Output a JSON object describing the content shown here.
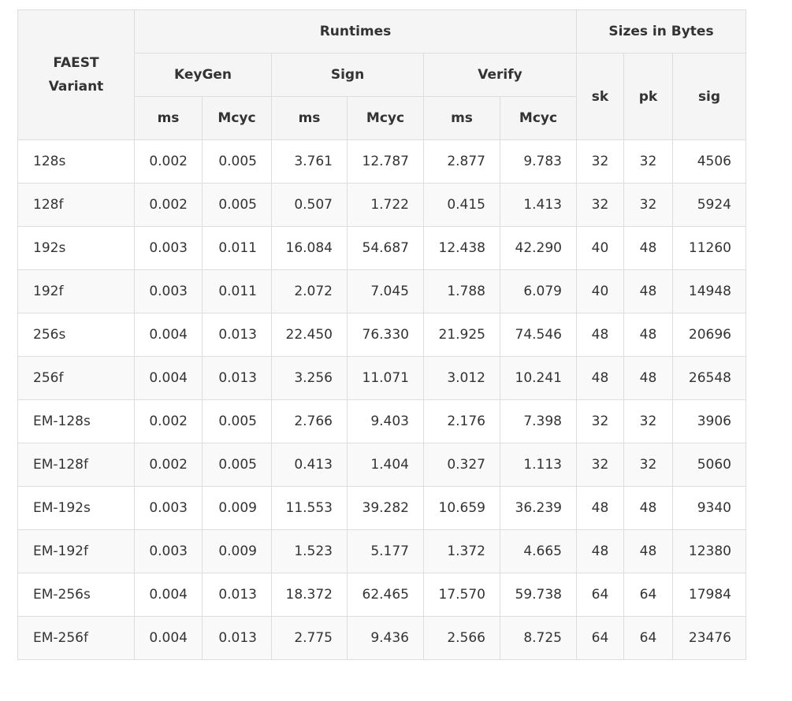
{
  "header": {
    "variant_line1": "FAEST",
    "variant_line2": "Variant",
    "runtimes": "Runtimes",
    "sizes": "Sizes in Bytes",
    "keygen": "KeyGen",
    "sign": "Sign",
    "verify": "Verify",
    "ms": "ms",
    "mcyc": "Mcyc",
    "sk": "sk",
    "pk": "pk",
    "sig": "sig"
  },
  "rows": [
    [
      "128s",
      "0.002",
      "0.005",
      "3.761",
      "12.787",
      "2.877",
      "9.783",
      "32",
      "32",
      "4506"
    ],
    [
      "128f",
      "0.002",
      "0.005",
      "0.507",
      "1.722",
      "0.415",
      "1.413",
      "32",
      "32",
      "5924"
    ],
    [
      "192s",
      "0.003",
      "0.011",
      "16.084",
      "54.687",
      "12.438",
      "42.290",
      "40",
      "48",
      "11260"
    ],
    [
      "192f",
      "0.003",
      "0.011",
      "2.072",
      "7.045",
      "1.788",
      "6.079",
      "40",
      "48",
      "14948"
    ],
    [
      "256s",
      "0.004",
      "0.013",
      "22.450",
      "76.330",
      "21.925",
      "74.546",
      "48",
      "48",
      "20696"
    ],
    [
      "256f",
      "0.004",
      "0.013",
      "3.256",
      "11.071",
      "3.012",
      "10.241",
      "48",
      "48",
      "26548"
    ],
    [
      "EM-128s",
      "0.002",
      "0.005",
      "2.766",
      "9.403",
      "2.176",
      "7.398",
      "32",
      "32",
      "3906"
    ],
    [
      "EM-128f",
      "0.002",
      "0.005",
      "0.413",
      "1.404",
      "0.327",
      "1.113",
      "32",
      "32",
      "5060"
    ],
    [
      "EM-192s",
      "0.003",
      "0.009",
      "11.553",
      "39.282",
      "10.659",
      "36.239",
      "48",
      "48",
      "9340"
    ],
    [
      "EM-192f",
      "0.003",
      "0.009",
      "1.523",
      "5.177",
      "1.372",
      "4.665",
      "48",
      "48",
      "12380"
    ],
    [
      "EM-256s",
      "0.004",
      "0.013",
      "18.372",
      "62.465",
      "17.570",
      "59.738",
      "64",
      "64",
      "17984"
    ],
    [
      "EM-256f",
      "0.004",
      "0.013",
      "2.775",
      "9.436",
      "2.566",
      "8.725",
      "64",
      "64",
      "23476"
    ]
  ]
}
